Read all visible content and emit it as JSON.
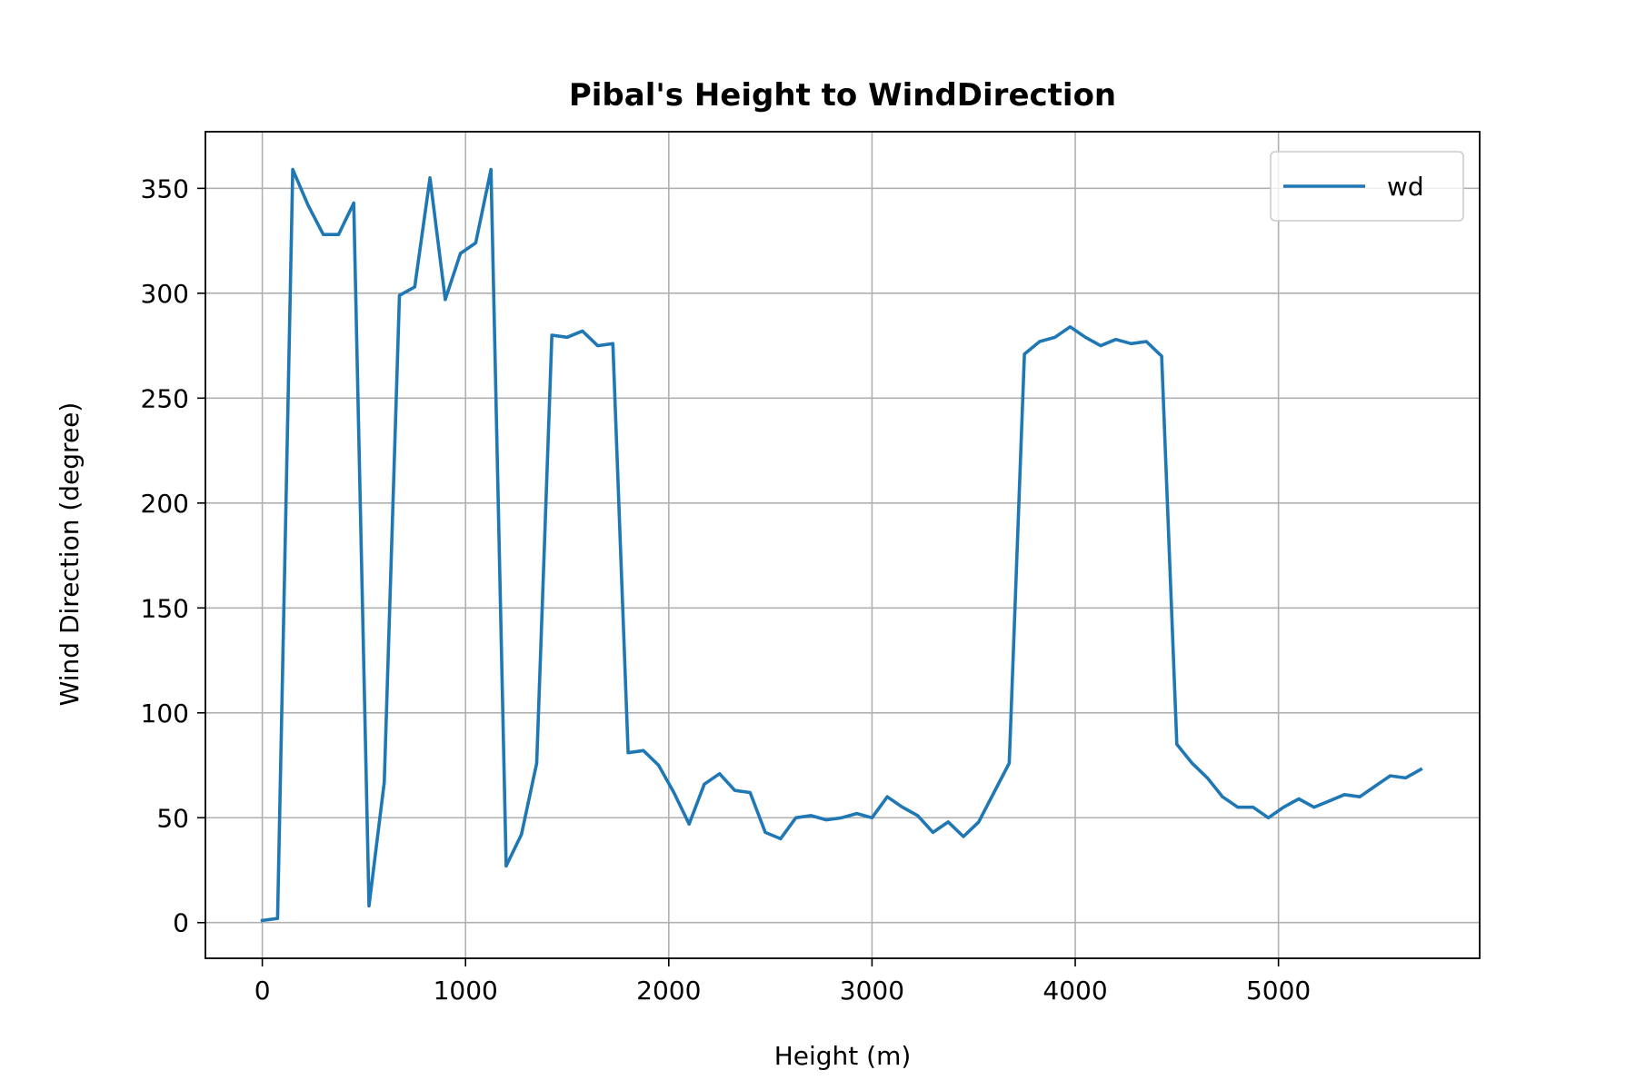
{
  "chart_data": {
    "type": "line",
    "title": "Pibal's Height to WindDirection",
    "xlabel": "Height (m)",
    "ylabel": "Wind Direction (degree)",
    "xlim": [
      -280,
      5990
    ],
    "ylim": [
      -17,
      377
    ],
    "xticks": [
      0,
      1000,
      2000,
      3000,
      4000,
      5000
    ],
    "yticks": [
      0,
      50,
      100,
      150,
      200,
      250,
      300,
      350
    ],
    "grid": true,
    "legend_position": "top-right",
    "series": [
      {
        "name": "wd",
        "color": "#1f77b4",
        "x": [
          0,
          75,
          150,
          225,
          300,
          375,
          450,
          525,
          600,
          675,
          750,
          825,
          900,
          975,
          1050,
          1125,
          1200,
          1275,
          1350,
          1425,
          1500,
          1575,
          1650,
          1725,
          1800,
          1875,
          1950,
          2025,
          2100,
          2175,
          2250,
          2325,
          2400,
          2475,
          2550,
          2625,
          2700,
          2775,
          2850,
          2925,
          3000,
          3075,
          3150,
          3225,
          3300,
          3375,
          3450,
          3525,
          3600,
          3675,
          3750,
          3825,
          3900,
          3975,
          4050,
          4125,
          4200,
          4275,
          4350,
          4425,
          4500,
          4575,
          4650,
          4725,
          4800,
          4875,
          4950,
          5025,
          5100,
          5175,
          5250,
          5325,
          5400,
          5475,
          5550,
          5625,
          5700
        ],
        "y": [
          1,
          2,
          359,
          342,
          328,
          328,
          343,
          8,
          67,
          299,
          303,
          355,
          297,
          319,
          324,
          359,
          27,
          42,
          76,
          280,
          279,
          282,
          275,
          276,
          81,
          82,
          75,
          62,
          47,
          66,
          71,
          63,
          62,
          43,
          40,
          50,
          51,
          49,
          50,
          52,
          50,
          60,
          55,
          51,
          43,
          48,
          41,
          48,
          62,
          76,
          271,
          277,
          279,
          284,
          279,
          275,
          278,
          276,
          277,
          270,
          85,
          76,
          69,
          60,
          55,
          55,
          50,
          55,
          59,
          55,
          58,
          61,
          60,
          65,
          70,
          69,
          73
        ]
      }
    ]
  }
}
